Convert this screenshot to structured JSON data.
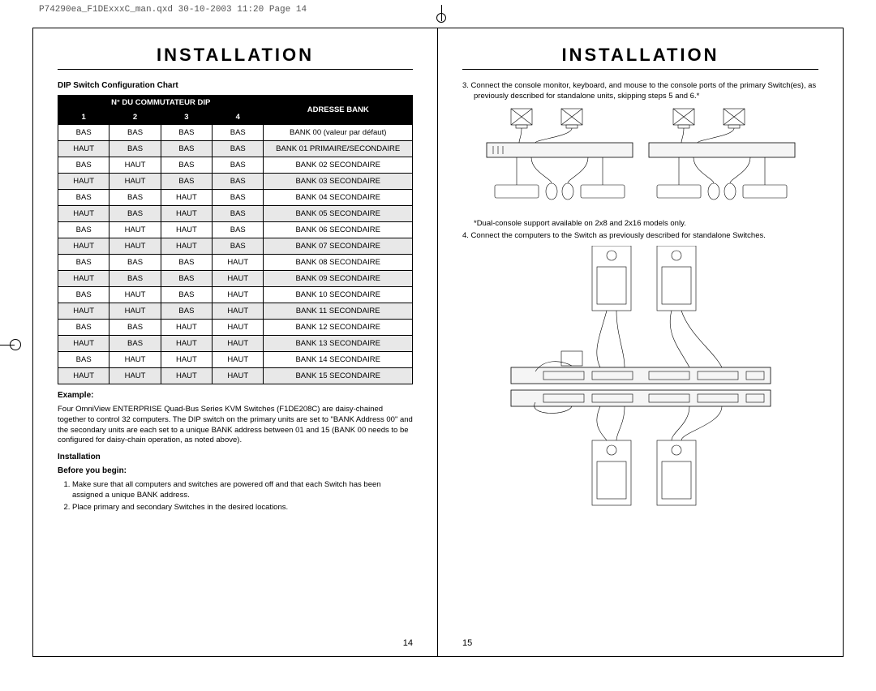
{
  "header": "P74290ea_F1DExxxC_man.qxd  30-10-2003  11:20  Page 14",
  "section_title": "INSTALLATION",
  "left": {
    "chart_title": "DIP Switch Configuration Chart",
    "table": {
      "group_header": "N° DU COMMUTATEUR DIP",
      "bank_header": "ADRESSE BANK",
      "cols": [
        "1",
        "2",
        "3",
        "4"
      ],
      "rows": [
        {
          "v": [
            "BAS",
            "BAS",
            "BAS",
            "BAS"
          ],
          "b": "BANK 00 (valeur par défaut)",
          "s": false
        },
        {
          "v": [
            "HAUT",
            "BAS",
            "BAS",
            "BAS"
          ],
          "b": "BANK 01 PRIMAIRE/SECONDAIRE",
          "s": true
        },
        {
          "v": [
            "BAS",
            "HAUT",
            "BAS",
            "BAS"
          ],
          "b": "BANK 02 SECONDAIRE",
          "s": false
        },
        {
          "v": [
            "HAUT",
            "HAUT",
            "BAS",
            "BAS"
          ],
          "b": "BANK 03 SECONDAIRE",
          "s": true
        },
        {
          "v": [
            "BAS",
            "BAS",
            "HAUT",
            "BAS"
          ],
          "b": "BANK 04 SECONDAIRE",
          "s": false
        },
        {
          "v": [
            "HAUT",
            "BAS",
            "HAUT",
            "BAS"
          ],
          "b": "BANK 05 SECONDAIRE",
          "s": true
        },
        {
          "v": [
            "BAS",
            "HAUT",
            "HAUT",
            "BAS"
          ],
          "b": "BANK 06 SECONDAIRE",
          "s": false
        },
        {
          "v": [
            "HAUT",
            "HAUT",
            "HAUT",
            "BAS"
          ],
          "b": "BANK 07 SECONDAIRE",
          "s": true
        },
        {
          "v": [
            "BAS",
            "BAS",
            "BAS",
            "HAUT"
          ],
          "b": "BANK 08 SECONDAIRE",
          "s": false
        },
        {
          "v": [
            "HAUT",
            "BAS",
            "BAS",
            "HAUT"
          ],
          "b": "BANK 09 SECONDAIRE",
          "s": true
        },
        {
          "v": [
            "BAS",
            "HAUT",
            "BAS",
            "HAUT"
          ],
          "b": "BANK 10 SECONDAIRE",
          "s": false
        },
        {
          "v": [
            "HAUT",
            "HAUT",
            "BAS",
            "HAUT"
          ],
          "b": "BANK 11 SECONDAIRE",
          "s": true
        },
        {
          "v": [
            "BAS",
            "BAS",
            "HAUT",
            "HAUT"
          ],
          "b": "BANK 12 SECONDAIRE",
          "s": false
        },
        {
          "v": [
            "HAUT",
            "BAS",
            "HAUT",
            "HAUT"
          ],
          "b": "BANK 13 SECONDAIRE",
          "s": true
        },
        {
          "v": [
            "BAS",
            "HAUT",
            "HAUT",
            "HAUT"
          ],
          "b": "BANK 14 SECONDAIRE",
          "s": false
        },
        {
          "v": [
            "HAUT",
            "HAUT",
            "HAUT",
            "HAUT"
          ],
          "b": "BANK 15 SECONDAIRE",
          "s": true
        }
      ]
    },
    "example_label": "Example:",
    "example_text": "Four OmniView ENTERPRISE Quad-Bus Series KVM Switches (F1DE208C) are daisy-chained together to control 32 computers. The DIP switch on the primary units are set to \"BANK Address 00\" and the secondary units are each set to a unique BANK address between 01 and 15 (BANK 00 needs to be configured for daisy-chain operation, as noted above).",
    "install_label": "Installation",
    "before_label": "Before you begin:",
    "steps": [
      "Make sure that all computers and switches are powered off and that each Switch has been assigned a unique BANK address.",
      "Place primary and secondary Switches in the desired locations."
    ],
    "page_num": "14"
  },
  "right": {
    "step3": "3. Connect the console monitor, keyboard, and mouse to the console ports of the primary Switch(es), as previously described for standalone units, skipping steps 5 and 6.*",
    "footnote": "*Dual-console support available on 2x8 and 2x16 models only.",
    "step4": "4. Connect the computers to the Switch as previously described for standalone Switches.",
    "page_num": "15"
  }
}
